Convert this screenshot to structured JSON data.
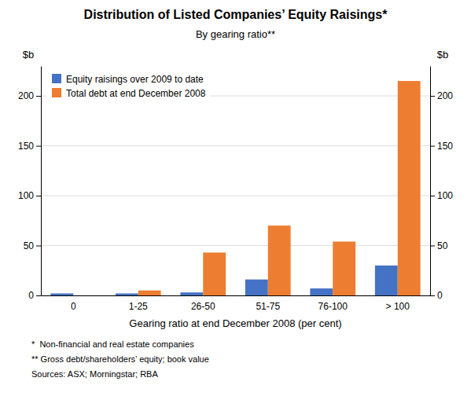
{
  "chart_data": {
    "type": "bar",
    "title": "Distribution of Listed Companies’ Equity Raisings*",
    "subtitle": "By gearing ratio**",
    "categories": [
      "0",
      "1-25",
      "26-50",
      "51-75",
      "76-100",
      "> 100"
    ],
    "series": [
      {
        "name": "Equity raisings over 2009 to date",
        "color": "#4472C4",
        "values": [
          2,
          2,
          3,
          16,
          7,
          30
        ]
      },
      {
        "name": "Total debt at end December 2008",
        "color": "#ED7D31",
        "values": [
          0,
          5,
          43,
          70,
          54,
          215
        ]
      }
    ],
    "xlabel": "Gearing ratio at end December 2008 (per cent)",
    "ylabel": "$b",
    "y2label": "$b",
    "ylim": [
      0,
      230
    ],
    "yticks": [
      0,
      50,
      100,
      150,
      200
    ],
    "y2lim": [
      0,
      230
    ],
    "y2ticks": [
      0,
      50,
      100,
      150,
      200
    ],
    "grid": true,
    "legend": "upper left",
    "annotations": [
      "*  Non-financial and real estate companies",
      "** Gross debt/shareholders’ equity; book value",
      "Sources: ASX; Morningstar; RBA"
    ]
  }
}
